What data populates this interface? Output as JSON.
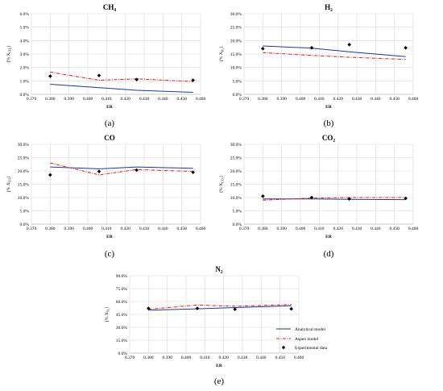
{
  "colors": {
    "analytical": "#1f3a8f",
    "aspen": "#e01b1b",
    "experimental": "#000000",
    "grid": "#d9d9d9"
  },
  "legend": {
    "analytical": "Analytical model",
    "aspen": "Aspen model",
    "experimental": "Experimental data"
  },
  "chart_data": [
    {
      "type": "line",
      "title": "CH₄",
      "panel_label": "(a)",
      "xlabel": "ER",
      "ylabel": "[% X_CH₄]",
      "xlim": [
        0.37,
        0.46
      ],
      "ylim": [
        0,
        6
      ],
      "xticks": [
        "0.370",
        "0.380",
        "0.390",
        "0.400",
        "0.410",
        "0.420",
        "0.430",
        "0.440",
        "0.450",
        "0.460"
      ],
      "yticks": [
        "0.0%",
        "1.0%",
        "2.0%",
        "3.0%",
        "4.0%",
        "5.0%",
        "6.0%"
      ],
      "series": [
        {
          "name": "Analytical model",
          "x": [
            0.38,
            0.406,
            0.426,
            0.456
          ],
          "y": [
            0.75,
            0.5,
            0.3,
            0.15
          ]
        },
        {
          "name": "Aspen model",
          "x": [
            0.38,
            0.406,
            0.426,
            0.456
          ],
          "y": [
            1.65,
            1.05,
            1.15,
            0.95
          ]
        },
        {
          "name": "Experimental data",
          "x": [
            0.38,
            0.406,
            0.426,
            0.456
          ],
          "y": [
            1.35,
            1.4,
            1.1,
            1.05
          ]
        }
      ]
    },
    {
      "type": "line",
      "title": "H₂",
      "panel_label": "(b)",
      "xlabel": "ER",
      "ylabel": "[% X_H₂]",
      "xlim": [
        0.37,
        0.46
      ],
      "ylim": [
        0,
        30
      ],
      "xticks": [
        "0.370",
        "0.380",
        "0.390",
        "0.400",
        "0.410",
        "0.420",
        "0.430",
        "0.440",
        "0.450",
        "0.460"
      ],
      "yticks": [
        "0.0%",
        "5.0%",
        "10.0%",
        "15.0%",
        "20.0%",
        "25.0%",
        "30.0%"
      ],
      "series": [
        {
          "name": "Analytical model",
          "x": [
            0.38,
            0.406,
            0.426,
            0.456
          ],
          "y": [
            18.0,
            17.2,
            15.8,
            14.0
          ]
        },
        {
          "name": "Aspen model",
          "x": [
            0.38,
            0.406,
            0.426,
            0.456
          ],
          "y": [
            15.5,
            14.5,
            13.8,
            13.0
          ]
        },
        {
          "name": "Experimental data",
          "x": [
            0.38,
            0.406,
            0.426,
            0.456
          ],
          "y": [
            17.0,
            17.3,
            18.5,
            17.3
          ]
        }
      ]
    },
    {
      "type": "line",
      "title": "CO",
      "panel_label": "(c)",
      "xlabel": "ER",
      "ylabel": "[% X_CO]",
      "xlim": [
        0.37,
        0.46
      ],
      "ylim": [
        0,
        30
      ],
      "xticks": [
        "0.370",
        "0.380",
        "0.390",
        "0.400",
        "0.410",
        "0.420",
        "0.430",
        "0.440",
        "0.450",
        "0.460"
      ],
      "yticks": [
        "0.0%",
        "5.0%",
        "10.0%",
        "15.0%",
        "20.0%",
        "25.0%",
        "30.0%"
      ],
      "series": [
        {
          "name": "Analytical model",
          "x": [
            0.38,
            0.406,
            0.426,
            0.456
          ],
          "y": [
            21.5,
            20.8,
            21.5,
            21.0
          ]
        },
        {
          "name": "Aspen model",
          "x": [
            0.38,
            0.406,
            0.426,
            0.456
          ],
          "y": [
            23.0,
            18.5,
            20.5,
            19.8
          ]
        },
        {
          "name": "Experimental data",
          "x": [
            0.38,
            0.406,
            0.426,
            0.456
          ],
          "y": [
            18.5,
            19.8,
            20.3,
            19.5
          ]
        }
      ]
    },
    {
      "type": "line",
      "title": "CO₂",
      "panel_label": "(d)",
      "xlabel": "ER",
      "ylabel": "[% X_CO₂]",
      "xlim": [
        0.37,
        0.46
      ],
      "ylim": [
        0,
        30
      ],
      "xticks": [
        "0.370",
        "0.380",
        "0.390",
        "0.400",
        "0.410",
        "0.420",
        "0.430",
        "0.440",
        "0.450",
        "0.460"
      ],
      "yticks": [
        "0.0%",
        "5.0%",
        "10.0%",
        "15.0%",
        "20.0%",
        "25.0%",
        "30.0%"
      ],
      "series": [
        {
          "name": "Analytical model",
          "x": [
            0.38,
            0.406,
            0.426,
            0.456
          ],
          "y": [
            9.5,
            9.5,
            9.3,
            9.2
          ]
        },
        {
          "name": "Aspen model",
          "x": [
            0.38,
            0.406,
            0.426,
            0.456
          ],
          "y": [
            9.0,
            9.8,
            10.0,
            10.0
          ]
        },
        {
          "name": "Experimental data",
          "x": [
            0.38,
            0.406,
            0.426,
            0.456
          ],
          "y": [
            10.5,
            10.0,
            9.5,
            9.7
          ]
        }
      ]
    },
    {
      "type": "line",
      "title": "N₂",
      "panel_label": "(e)",
      "xlabel": "ER",
      "ylabel": "[% X_N₂]",
      "xlim": [
        0.37,
        0.46
      ],
      "ylim": [
        0,
        90
      ],
      "xticks": [
        "0.370",
        "0.380",
        "0.390",
        "0.400",
        "0.410",
        "0.420",
        "0.430",
        "0.440",
        "0.450",
        "0.460"
      ],
      "yticks": [
        "0.0%",
        "15.0%",
        "30.0%",
        "45.0%",
        "60.0%",
        "75.0%",
        "90.0%"
      ],
      "series": [
        {
          "name": "Analytical model",
          "x": [
            0.38,
            0.406,
            0.426,
            0.456
          ],
          "y": [
            50.0,
            51.5,
            53.0,
            55.0
          ]
        },
        {
          "name": "Aspen model",
          "x": [
            0.38,
            0.406,
            0.426,
            0.456
          ],
          "y": [
            51.0,
            56.0,
            54.5,
            56.5
          ]
        },
        {
          "name": "Experimental data",
          "x": [
            0.38,
            0.406,
            0.426,
            0.456
          ],
          "y": [
            52.0,
            52.0,
            51.0,
            51.5
          ]
        }
      ]
    }
  ]
}
